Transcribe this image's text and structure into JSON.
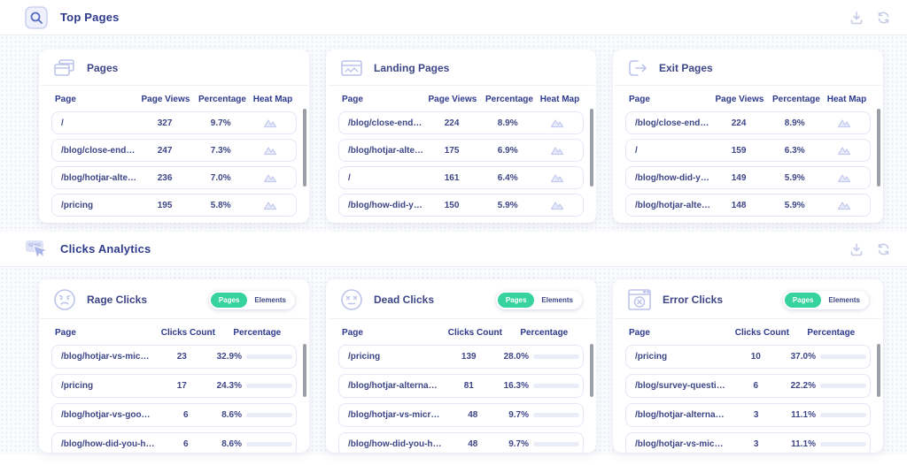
{
  "colors": {
    "accent_indigo": "#2e3a8c",
    "green_pill": "#36d39f",
    "orange_bar": "#f89b2d",
    "purple_bar": "#7c3aed"
  },
  "top_pages": {
    "section_title": "Top Pages",
    "columns": {
      "page": "Page",
      "views": "Page Views",
      "pct": "Percentage",
      "heatmap": "Heat Map"
    },
    "cards": [
      {
        "title": "Pages",
        "rows": [
          {
            "page": "/",
            "views": "327",
            "pct": "9.7%"
          },
          {
            "page": "/blog/close-ended...",
            "views": "247",
            "pct": "7.3%"
          },
          {
            "page": "/blog/hotjar-altern...",
            "views": "236",
            "pct": "7.0%"
          },
          {
            "page": "/pricing",
            "views": "195",
            "pct": "5.8%"
          }
        ]
      },
      {
        "title": "Landing Pages",
        "rows": [
          {
            "page": "/blog/close-ended...",
            "views": "224",
            "pct": "8.9%"
          },
          {
            "page": "/blog/hotjar-altern...",
            "views": "175",
            "pct": "6.9%"
          },
          {
            "page": "/",
            "views": "161",
            "pct": "6.4%"
          },
          {
            "page": "/blog/how-did-yo...",
            "views": "150",
            "pct": "5.9%"
          }
        ]
      },
      {
        "title": "Exit Pages",
        "rows": [
          {
            "page": "/blog/close-ended...",
            "views": "224",
            "pct": "8.9%"
          },
          {
            "page": "/",
            "views": "159",
            "pct": "6.3%"
          },
          {
            "page": "/blog/how-did-yo...",
            "views": "149",
            "pct": "5.9%"
          },
          {
            "page": "/blog/hotjar-altern...",
            "views": "148",
            "pct": "5.9%"
          }
        ]
      }
    ]
  },
  "clicks": {
    "section_title": "Clicks Analytics",
    "columns": {
      "page": "Page",
      "count": "Clicks Count",
      "pct": "Percentage"
    },
    "toggle": {
      "active": "Pages",
      "inactive": "Elements"
    },
    "cards": [
      {
        "title": "Rage Clicks",
        "bar_color": "#f89b2d",
        "rows": [
          {
            "page": "/blog/hotjar-vs-microsof...",
            "count": "23",
            "pct": "32.9%",
            "pct_num": 32.9
          },
          {
            "page": "/pricing",
            "count": "17",
            "pct": "24.3%",
            "pct_num": 24.3
          },
          {
            "page": "/blog/hotjar-vs-google-a...",
            "count": "6",
            "pct": "8.6%",
            "pct_num": 8.6
          },
          {
            "page": "/blog/how-did-you-hear...",
            "count": "6",
            "pct": "8.6%",
            "pct_num": 8.6
          }
        ]
      },
      {
        "title": "Dead Clicks",
        "bar_color": "#7c3aed",
        "rows": [
          {
            "page": "/pricing",
            "count": "139",
            "pct": "28.0%",
            "pct_num": 28.0
          },
          {
            "page": "/blog/hotjar-alternatives",
            "count": "81",
            "pct": "16.3%",
            "pct_num": 16.3
          },
          {
            "page": "/blog/hotjar-vs-microsof...",
            "count": "48",
            "pct": "9.7%",
            "pct_num": 9.7
          },
          {
            "page": "/blog/how-did-you-hear...",
            "count": "48",
            "pct": "9.7%",
            "pct_num": 9.7
          }
        ]
      },
      {
        "title": "Error Clicks",
        "bar_color": "#f89b2d",
        "rows": [
          {
            "page": "/pricing",
            "count": "10",
            "pct": "37.0%",
            "pct_num": 37.0
          },
          {
            "page": "/blog/survey-question-e...",
            "count": "6",
            "pct": "22.2%",
            "pct_num": 22.2
          },
          {
            "page": "/blog/hotjar-alternatives",
            "count": "3",
            "pct": "11.1%",
            "pct_num": 11.1
          },
          {
            "page": "/blog/hotjar-vs-microsof...",
            "count": "3",
            "pct": "11.1%",
            "pct_num": 11.1
          }
        ]
      }
    ]
  }
}
